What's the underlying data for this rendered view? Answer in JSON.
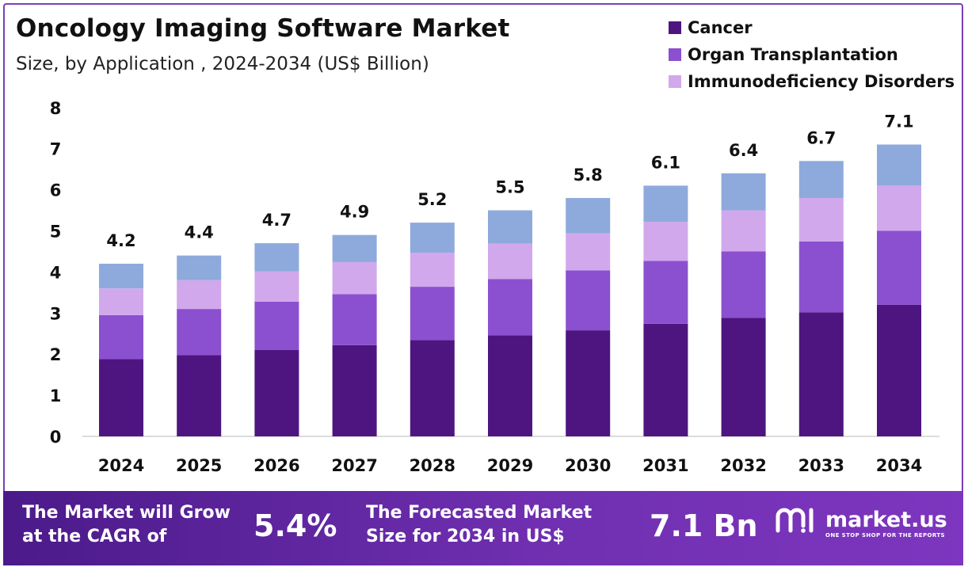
{
  "header": {
    "title": "Oncology Imaging Software Market",
    "subtitle": "Size, by Application , 2024-2034 (US$ Billion)"
  },
  "legend": [
    {
      "label": "Cancer",
      "color": "#4e1580"
    },
    {
      "label": "Organ Transplantation",
      "color": "#8b50cf"
    },
    {
      "label": "Immunodeficiency Disorders",
      "color": "#d2a8ec"
    }
  ],
  "chart_data": {
    "type": "bar",
    "stacked": true,
    "categories": [
      "2024",
      "2025",
      "2026",
      "2027",
      "2028",
      "2029",
      "2030",
      "2031",
      "2032",
      "2033",
      "2034"
    ],
    "series": [
      {
        "name": "Cancer",
        "color": "#4e1580",
        "values": [
          1.88,
          1.98,
          2.1,
          2.22,
          2.34,
          2.46,
          2.58,
          2.74,
          2.88,
          3.02,
          3.2
        ]
      },
      {
        "name": "Organ Transplantation",
        "color": "#8b50cf",
        "values": [
          1.07,
          1.12,
          1.18,
          1.24,
          1.3,
          1.37,
          1.46,
          1.53,
          1.62,
          1.72,
          1.8
        ]
      },
      {
        "name": "Immunodeficiency Disorders",
        "color": "#d2a8ec",
        "values": [
          0.65,
          0.7,
          0.73,
          0.78,
          0.83,
          0.86,
          0.9,
          0.95,
          1.0,
          1.06,
          1.1
        ]
      },
      {
        "values": [
          0.6,
          0.6,
          0.69,
          0.66,
          0.73,
          0.81,
          0.86,
          0.88,
          0.9,
          0.9,
          1.0
        ],
        "color": "#8eaadc"
      }
    ],
    "totals_labels": [
      "4.2",
      "4.4",
      "4.7",
      "4.9",
      "5.2",
      "5.5",
      "5.8",
      "6.1",
      "6.4",
      "6.7",
      "7.1"
    ],
    "ylim": [
      0,
      8
    ],
    "yticks": [
      "0",
      "1",
      "2",
      "3",
      "4",
      "5",
      "6",
      "7",
      "8"
    ],
    "grid": false
  },
  "banner": {
    "cagr_text_line1": "The Market will Grow",
    "cagr_text_line2": "at the CAGR of",
    "cagr_value": "5.4%",
    "forecast_text_line1": "The Forecasted Market",
    "forecast_text_line2": "Size for 2034 in US$",
    "forecast_value": "7.1 Bn",
    "logo_name": "market.us",
    "logo_tagline": "ONE STOP SHOP FOR THE REPORTS"
  }
}
